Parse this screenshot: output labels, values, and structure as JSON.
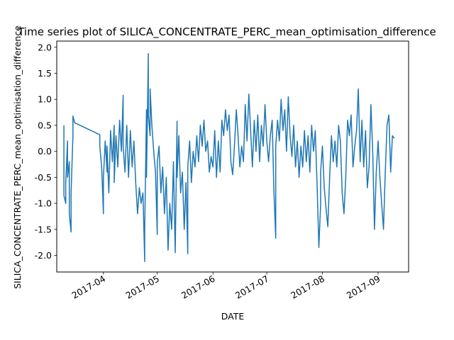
{
  "chart_data": {
    "type": "line",
    "title": "Time series plot of SILICA_CONCENTRATE_PERC_mean_optimisation_difference",
    "xlabel": "DATE",
    "ylabel": "SILICA_CONCENTRATE_PERC_mean_optimisation_difference",
    "x_range": [
      "2017-03-06",
      "2017-09-18"
    ],
    "ylim": [
      -2.32,
      2.12
    ],
    "x_ticks": [
      "2017-04",
      "2017-05",
      "2017-06",
      "2017-07",
      "2017-08",
      "2017-09"
    ],
    "y_ticks": [
      -2.0,
      -1.5,
      -1.0,
      -0.5,
      0.0,
      0.5,
      1.0,
      1.5,
      2.0
    ],
    "grid": false,
    "line_color": "#1f77b4",
    "series": [
      {
        "name": "",
        "points": [
          [
            "2017-03-10",
            0.5
          ],
          [
            "2017-03-10",
            -0.85
          ],
          [
            "2017-03-11",
            -1.0
          ],
          [
            "2017-03-11",
            -0.6
          ],
          [
            "2017-03-12",
            0.2
          ],
          [
            "2017-03-12",
            -0.5
          ],
          [
            "2017-03-13",
            -0.2
          ],
          [
            "2017-03-13",
            -1.2
          ],
          [
            "2017-03-14",
            -1.55
          ],
          [
            "2017-03-14",
            -0.8
          ],
          [
            "2017-03-15",
            0.3
          ],
          [
            "2017-03-15",
            0.68
          ],
          [
            "2017-03-16",
            0.55
          ],
          [
            "2017-03-30",
            0.32
          ],
          [
            "2017-03-30",
            0.1
          ],
          [
            "2017-03-31",
            -0.3
          ],
          [
            "2017-04-01",
            -1.2
          ],
          [
            "2017-04-01",
            -0.5
          ],
          [
            "2017-04-02",
            0.2
          ],
          [
            "2017-04-03",
            -0.4
          ],
          [
            "2017-04-03",
            0.1
          ],
          [
            "2017-04-04",
            -0.8
          ],
          [
            "2017-04-05",
            0.4
          ],
          [
            "2017-04-06",
            -0.2
          ],
          [
            "2017-04-07",
            0.5
          ],
          [
            "2017-04-07",
            -0.6
          ],
          [
            "2017-04-08",
            0.3
          ],
          [
            "2017-04-09",
            -0.3
          ],
          [
            "2017-04-10",
            0.6
          ],
          [
            "2017-04-11",
            0.0
          ],
          [
            "2017-04-12",
            1.08
          ],
          [
            "2017-04-12",
            0.1
          ],
          [
            "2017-04-13",
            -0.4
          ],
          [
            "2017-04-14",
            0.5
          ],
          [
            "2017-04-15",
            -0.5
          ],
          [
            "2017-04-16",
            0.4
          ],
          [
            "2017-04-17",
            -0.3
          ],
          [
            "2017-04-18",
            0.2
          ],
          [
            "2017-04-19",
            -0.6
          ],
          [
            "2017-04-20",
            -1.2
          ],
          [
            "2017-04-21",
            -0.7
          ],
          [
            "2017-04-22",
            -1.0
          ],
          [
            "2017-04-23",
            -0.8
          ],
          [
            "2017-04-24",
            -2.12
          ],
          [
            "2017-04-24",
            -1.5
          ],
          [
            "2017-04-25",
            0.8
          ],
          [
            "2017-04-25",
            -0.5
          ],
          [
            "2017-04-26",
            1.88
          ],
          [
            "2017-04-26",
            0.7
          ],
          [
            "2017-04-27",
            0.3
          ],
          [
            "2017-04-27",
            1.2
          ],
          [
            "2017-04-28",
            0.5
          ],
          [
            "2017-04-29",
            0.0
          ],
          [
            "2017-04-30",
            -0.4
          ],
          [
            "2017-05-01",
            -1.6
          ],
          [
            "2017-05-01",
            -0.2
          ],
          [
            "2017-05-02",
            0.1
          ],
          [
            "2017-05-03",
            -0.8
          ],
          [
            "2017-05-04",
            -0.3
          ],
          [
            "2017-05-05",
            -1.2
          ],
          [
            "2017-05-06",
            -0.5
          ],
          [
            "2017-05-07",
            -1.9
          ],
          [
            "2017-05-08",
            -1.0
          ],
          [
            "2017-05-09",
            -1.5
          ],
          [
            "2017-05-10",
            -0.2
          ],
          [
            "2017-05-11",
            -1.95
          ],
          [
            "2017-05-12",
            0.58
          ],
          [
            "2017-05-12",
            -0.5
          ],
          [
            "2017-05-13",
            0.3
          ],
          [
            "2017-05-14",
            -0.8
          ],
          [
            "2017-05-15",
            -0.4
          ],
          [
            "2017-05-16",
            -1.5
          ],
          [
            "2017-05-17",
            -0.6
          ],
          [
            "2017-05-18",
            -1.97
          ],
          [
            "2017-05-18",
            -0.3
          ],
          [
            "2017-05-19",
            0.2
          ],
          [
            "2017-05-20",
            -0.6
          ],
          [
            "2017-05-21",
            0.0
          ],
          [
            "2017-05-22",
            -0.3
          ],
          [
            "2017-05-23",
            0.3
          ],
          [
            "2017-05-24",
            -0.2
          ],
          [
            "2017-05-25",
            0.5
          ],
          [
            "2017-05-26",
            0.1
          ],
          [
            "2017-05-27",
            0.6
          ],
          [
            "2017-05-28",
            0.0
          ],
          [
            "2017-05-29",
            0.2
          ],
          [
            "2017-05-30",
            -0.4
          ],
          [
            "2017-05-31",
            -0.1
          ],
          [
            "2017-06-01",
            -0.3
          ],
          [
            "2017-06-02",
            0.4
          ],
          [
            "2017-06-03",
            -0.5
          ],
          [
            "2017-06-04",
            0.2
          ],
          [
            "2017-06-05",
            -0.4
          ],
          [
            "2017-06-06",
            0.6
          ],
          [
            "2017-06-07",
            0.3
          ],
          [
            "2017-06-08",
            0.8
          ],
          [
            "2017-06-09",
            0.4
          ],
          [
            "2017-06-10",
            0.7
          ],
          [
            "2017-06-11",
            -0.2
          ],
          [
            "2017-06-12",
            -0.45
          ],
          [
            "2017-06-13",
            0.1
          ],
          [
            "2017-06-14",
            0.8
          ],
          [
            "2017-06-15",
            0.3
          ],
          [
            "2017-06-16",
            -0.3
          ],
          [
            "2017-06-17",
            0.1
          ],
          [
            "2017-06-18",
            -0.2
          ],
          [
            "2017-06-19",
            0.9
          ],
          [
            "2017-06-20",
            0.2
          ],
          [
            "2017-06-21",
            1.1
          ],
          [
            "2017-06-22",
            0.4
          ],
          [
            "2017-06-23",
            -0.3
          ],
          [
            "2017-06-24",
            0.6
          ],
          [
            "2017-06-25",
            0.0
          ],
          [
            "2017-06-26",
            0.7
          ],
          [
            "2017-06-27",
            -0.2
          ],
          [
            "2017-06-28",
            0.5
          ],
          [
            "2017-06-29",
            0.1
          ],
          [
            "2017-06-30",
            0.9
          ],
          [
            "2017-07-01",
            0.2
          ],
          [
            "2017-07-02",
            -0.2
          ],
          [
            "2017-07-03",
            0.3
          ],
          [
            "2017-07-04",
            0.6
          ],
          [
            "2017-07-05",
            -0.8
          ],
          [
            "2017-07-06",
            -1.67
          ],
          [
            "2017-07-06",
            0.1
          ],
          [
            "2017-07-07",
            0.6
          ],
          [
            "2017-07-08",
            0.2
          ],
          [
            "2017-07-09",
            1.0
          ],
          [
            "2017-07-10",
            0.4
          ],
          [
            "2017-07-11",
            0.8
          ],
          [
            "2017-07-12",
            0.0
          ],
          [
            "2017-07-13",
            1.05
          ],
          [
            "2017-07-14",
            0.3
          ],
          [
            "2017-07-15",
            -0.1
          ],
          [
            "2017-07-16",
            0.5
          ],
          [
            "2017-07-17",
            -0.3
          ],
          [
            "2017-07-18",
            0.2
          ],
          [
            "2017-07-19",
            -0.5
          ],
          [
            "2017-07-20",
            0.1
          ],
          [
            "2017-07-21",
            -0.3
          ],
          [
            "2017-07-22",
            0.4
          ],
          [
            "2017-07-23",
            -0.2
          ],
          [
            "2017-07-24",
            0.3
          ],
          [
            "2017-07-25",
            -0.4
          ],
          [
            "2017-07-26",
            0.5
          ],
          [
            "2017-07-27",
            0.0
          ],
          [
            "2017-07-28",
            0.4
          ],
          [
            "2017-07-29",
            -0.6
          ],
          [
            "2017-07-30",
            -1.85
          ],
          [
            "2017-07-31",
            -1.0
          ],
          [
            "2017-07-31",
            -0.4
          ],
          [
            "2017-08-01",
            0.1
          ],
          [
            "2017-08-02",
            -0.7
          ],
          [
            "2017-08-03",
            -1.1
          ],
          [
            "2017-08-04",
            -1.45
          ],
          [
            "2017-08-05",
            -0.5
          ],
          [
            "2017-08-06",
            0.3
          ],
          [
            "2017-08-07",
            -0.2
          ],
          [
            "2017-08-08",
            0.2
          ],
          [
            "2017-08-09",
            -0.3
          ],
          [
            "2017-08-10",
            0.5
          ],
          [
            "2017-08-11",
            0.2
          ],
          [
            "2017-08-12",
            -0.8
          ],
          [
            "2017-08-13",
            -1.2
          ],
          [
            "2017-08-14",
            -0.5
          ],
          [
            "2017-08-15",
            0.6
          ],
          [
            "2017-08-16",
            0.3
          ],
          [
            "2017-08-17",
            0.7
          ],
          [
            "2017-08-18",
            -0.3
          ],
          [
            "2017-08-19",
            0.1
          ],
          [
            "2017-08-20",
            0.4
          ],
          [
            "2017-08-21",
            1.2
          ],
          [
            "2017-08-22",
            -0.2
          ],
          [
            "2017-08-23",
            0.6
          ],
          [
            "2017-08-24",
            -0.3
          ],
          [
            "2017-08-25",
            0.4
          ],
          [
            "2017-08-26",
            -0.7
          ],
          [
            "2017-08-27",
            -0.3
          ],
          [
            "2017-08-28",
            0.9
          ],
          [
            "2017-08-29",
            0.0
          ],
          [
            "2017-08-30",
            -1.5
          ],
          [
            "2017-08-31",
            -0.4
          ],
          [
            "2017-09-01",
            0.2
          ],
          [
            "2017-09-02",
            -0.5
          ],
          [
            "2017-09-03",
            -1.0
          ],
          [
            "2017-09-04",
            -1.5
          ],
          [
            "2017-09-05",
            -0.4
          ],
          [
            "2017-09-06",
            0.5
          ],
          [
            "2017-09-07",
            0.7
          ],
          [
            "2017-09-08",
            -0.4
          ],
          [
            "2017-09-09",
            0.3
          ],
          [
            "2017-09-10",
            0.25
          ]
        ]
      }
    ]
  }
}
